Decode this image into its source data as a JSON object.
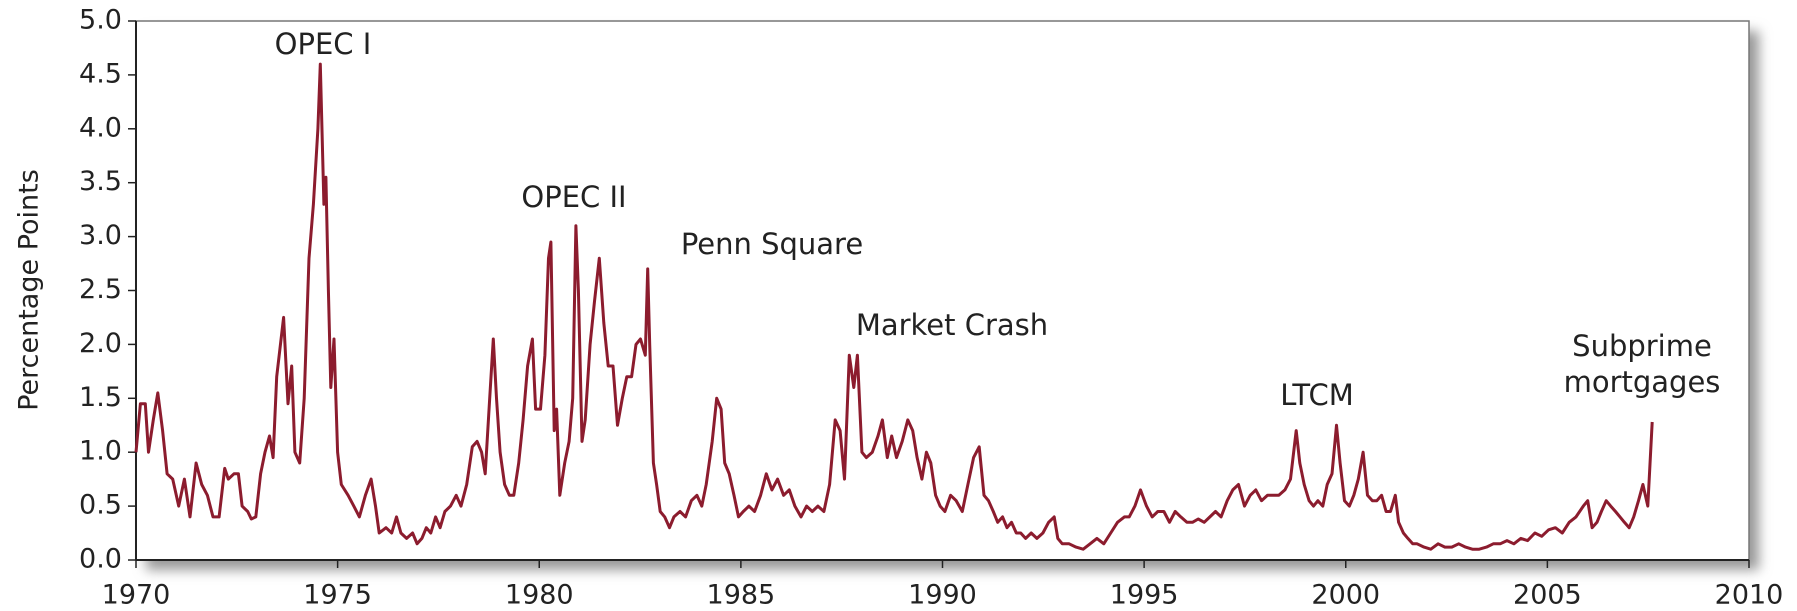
{
  "chart_data": {
    "type": "line",
    "y_label": "Percentage Points",
    "color": "#8c1c2e",
    "xlim": [
      1970,
      2010
    ],
    "ylim": [
      0,
      5
    ],
    "xticks": [
      1970,
      1975,
      1980,
      1985,
      1990,
      1995,
      2000,
      2005,
      2010
    ],
    "yticks": [
      {
        "value": 0,
        "label": "0.0"
      },
      0.5,
      {
        "value": 1,
        "label": "1.0"
      },
      1.5,
      {
        "value": 2,
        "label": "2.0"
      },
      2.5,
      {
        "value": 3,
        "label": "3.0"
      },
      3.5,
      {
        "value": 4,
        "label": "4.0"
      },
      4.5,
      {
        "value": 5,
        "label": "5.0"
      }
    ],
    "annotations": [
      "OPEC I",
      "OPEC II",
      "Penn Square",
      "Market Crash",
      "LTCM",
      "Subprime mortgages"
    ],
    "x": [
      1970.0,
      1970.11,
      1970.23,
      1970.31,
      1970.43,
      1970.54,
      1970.66,
      1970.77,
      1970.91,
      1971.06,
      1971.2,
      1971.34,
      1971.49,
      1971.63,
      1971.77,
      1971.91,
      1972.06,
      1972.2,
      1972.29,
      1972.43,
      1972.54,
      1972.63,
      1972.77,
      1972.86,
      1972.97,
      1973.09,
      1973.2,
      1973.31,
      1973.4,
      1973.49,
      1973.66,
      1973.77,
      1973.86,
      1973.94,
      1974.06,
      1974.17,
      1974.29,
      1974.4,
      1974.51,
      1974.57,
      1974.66,
      1974.71,
      1974.77,
      1974.83,
      1974.91,
      1975.0,
      1975.09,
      1975.26,
      1975.4,
      1975.54,
      1975.69,
      1975.83,
      1975.94,
      1976.03,
      1976.2,
      1976.34,
      1976.46,
      1976.57,
      1976.71,
      1976.86,
      1976.97,
      1977.09,
      1977.2,
      1977.31,
      1977.43,
      1977.54,
      1977.66,
      1977.8,
      1977.94,
      1978.06,
      1978.2,
      1978.34,
      1978.46,
      1978.57,
      1978.66,
      1978.77,
      1978.86,
      1978.94,
      1979.03,
      1979.14,
      1979.26,
      1979.37,
      1979.49,
      1979.6,
      1979.71,
      1979.83,
      1979.91,
      1980.03,
      1980.14,
      1980.23,
      1980.29,
      1980.37,
      1980.43,
      1980.51,
      1980.63,
      1980.74,
      1980.83,
      1980.91,
      1980.97,
      1981.06,
      1981.14,
      1981.26,
      1981.37,
      1981.49,
      1981.6,
      1981.71,
      1981.83,
      1981.94,
      1982.06,
      1982.17,
      1982.29,
      1982.4,
      1982.51,
      1982.63,
      1982.69,
      1982.74,
      1982.83,
      1982.91,
      1983.0,
      1983.11,
      1983.23,
      1983.34,
      1983.49,
      1983.63,
      1983.77,
      1983.91,
      1984.03,
      1984.14,
      1984.29,
      1984.4,
      1984.51,
      1984.6,
      1984.71,
      1984.83,
      1984.94,
      1985.06,
      1985.2,
      1985.34,
      1985.49,
      1985.63,
      1985.77,
      1985.91,
      1986.06,
      1986.2,
      1986.34,
      1986.49,
      1986.63,
      1986.77,
      1986.91,
      1987.06,
      1987.2,
      1987.34,
      1987.46,
      1987.57,
      1987.69,
      1987.8,
      1987.89,
      1988.0,
      1988.11,
      1988.26,
      1988.4,
      1988.51,
      1988.63,
      1988.74,
      1988.86,
      1989.0,
      1989.14,
      1989.26,
      1989.37,
      1989.49,
      1989.6,
      1989.71,
      1989.83,
      1989.94,
      1990.06,
      1990.2,
      1990.34,
      1990.49,
      1990.63,
      1990.77,
      1990.91,
      1991.03,
      1991.14,
      1991.26,
      1991.37,
      1991.49,
      1991.6,
      1991.71,
      1991.83,
      1991.94,
      1992.06,
      1992.2,
      1992.34,
      1992.49,
      1992.63,
      1992.77,
      1992.86,
      1992.97,
      1993.14,
      1993.31,
      1993.49,
      1993.66,
      1993.83,
      1994.0,
      1994.17,
      1994.34,
      1994.51,
      1994.63,
      1994.77,
      1994.91,
      1995.06,
      1995.2,
      1995.34,
      1995.49,
      1995.63,
      1995.77,
      1995.91,
      1996.06,
      1996.2,
      1996.34,
      1996.49,
      1996.63,
      1996.77,
      1996.91,
      1997.06,
      1997.2,
      1997.34,
      1997.49,
      1997.63,
      1997.77,
      1997.91,
      1998.06,
      1998.2,
      1998.34,
      1998.49,
      1998.63,
      1998.77,
      1998.86,
      1998.97,
      1999.09,
      1999.2,
      1999.31,
      1999.43,
      1999.54,
      1999.66,
      1999.77,
      1999.86,
      1999.97,
      2000.09,
      2000.2,
      2000.31,
      2000.43,
      2000.54,
      2000.66,
      2000.77,
      2000.89,
      2001.0,
      2001.11,
      2001.23,
      2001.31,
      2001.43,
      2001.54,
      2001.66,
      2001.77,
      2001.94,
      2002.11,
      2002.29,
      2002.46,
      2002.63,
      2002.8,
      2002.97,
      2003.14,
      2003.31,
      2003.49,
      2003.66,
      2003.83,
      2004.0,
      2004.17,
      2004.34,
      2004.51,
      2004.69,
      2004.86,
      2005.03,
      2005.2,
      2005.37,
      2005.54,
      2005.71,
      2005.89,
      2006.0,
      2006.11,
      2006.23,
      2006.34,
      2006.46,
      2006.57,
      2006.69,
      2006.8,
      2006.91,
      2007.03,
      2007.14,
      2007.26,
      2007.37,
      2007.49,
      2007.6
    ],
    "values": [
      1.0,
      1.45,
      1.45,
      1.0,
      1.3,
      1.55,
      1.2,
      0.8,
      0.75,
      0.5,
      0.75,
      0.4,
      0.9,
      0.7,
      0.6,
      0.4,
      0.4,
      0.85,
      0.75,
      0.8,
      0.8,
      0.5,
      0.45,
      0.38,
      0.4,
      0.8,
      1.0,
      1.15,
      0.95,
      1.7,
      2.25,
      1.45,
      1.8,
      1.0,
      0.9,
      1.5,
      2.8,
      3.3,
      4.0,
      4.6,
      3.3,
      3.55,
      2.5,
      1.6,
      2.05,
      1.0,
      0.7,
      0.6,
      0.5,
      0.4,
      0.6,
      0.75,
      0.5,
      0.25,
      0.3,
      0.25,
      0.4,
      0.25,
      0.2,
      0.25,
      0.15,
      0.2,
      0.3,
      0.25,
      0.4,
      0.3,
      0.45,
      0.5,
      0.6,
      0.5,
      0.7,
      1.05,
      1.1,
      1.0,
      0.8,
      1.5,
      2.05,
      1.5,
      1.0,
      0.7,
      0.6,
      0.6,
      0.9,
      1.3,
      1.8,
      2.05,
      1.4,
      1.4,
      1.9,
      2.8,
      2.95,
      1.2,
      1.4,
      0.6,
      0.9,
      1.1,
      1.5,
      3.1,
      2.5,
      1.1,
      1.3,
      2.0,
      2.4,
      2.8,
      2.2,
      1.8,
      1.8,
      1.25,
      1.5,
      1.7,
      1.7,
      2.0,
      2.05,
      1.9,
      2.7,
      2.0,
      0.9,
      0.7,
      0.45,
      0.4,
      0.3,
      0.4,
      0.45,
      0.4,
      0.55,
      0.6,
      0.5,
      0.7,
      1.1,
      1.5,
      1.4,
      0.9,
      0.8,
      0.6,
      0.4,
      0.45,
      0.5,
      0.45,
      0.6,
      0.8,
      0.65,
      0.75,
      0.6,
      0.65,
      0.5,
      0.4,
      0.5,
      0.45,
      0.5,
      0.45,
      0.7,
      1.3,
      1.2,
      0.75,
      1.9,
      1.6,
      1.9,
      1.0,
      0.95,
      1.0,
      1.15,
      1.3,
      0.95,
      1.15,
      0.95,
      1.1,
      1.3,
      1.2,
      0.95,
      0.75,
      1.0,
      0.9,
      0.6,
      0.5,
      0.45,
      0.6,
      0.55,
      0.45,
      0.7,
      0.95,
      1.05,
      0.6,
      0.55,
      0.45,
      0.35,
      0.4,
      0.3,
      0.35,
      0.25,
      0.25,
      0.2,
      0.25,
      0.2,
      0.25,
      0.35,
      0.4,
      0.2,
      0.15,
      0.15,
      0.12,
      0.1,
      0.15,
      0.2,
      0.15,
      0.25,
      0.35,
      0.4,
      0.4,
      0.5,
      0.65,
      0.5,
      0.4,
      0.45,
      0.45,
      0.35,
      0.45,
      0.4,
      0.35,
      0.35,
      0.38,
      0.35,
      0.4,
      0.45,
      0.4,
      0.55,
      0.65,
      0.7,
      0.5,
      0.6,
      0.65,
      0.55,
      0.6,
      0.6,
      0.6,
      0.65,
      0.75,
      1.2,
      0.9,
      0.7,
      0.55,
      0.5,
      0.55,
      0.5,
      0.7,
      0.8,
      1.25,
      0.9,
      0.55,
      0.5,
      0.6,
      0.75,
      1.0,
      0.6,
      0.55,
      0.55,
      0.6,
      0.45,
      0.45,
      0.6,
      0.35,
      0.25,
      0.2,
      0.15,
      0.15,
      0.12,
      0.1,
      0.15,
      0.12,
      0.12,
      0.15,
      0.12,
      0.1,
      0.1,
      0.12,
      0.15,
      0.15,
      0.18,
      0.15,
      0.2,
      0.18,
      0.25,
      0.22,
      0.28,
      0.3,
      0.25,
      0.35,
      0.4,
      0.5,
      0.55,
      0.3,
      0.35,
      0.45,
      0.55,
      0.5,
      0.45,
      0.4,
      0.35,
      0.3,
      0.4,
      0.55,
      0.7,
      0.5,
      1.28
    ]
  }
}
